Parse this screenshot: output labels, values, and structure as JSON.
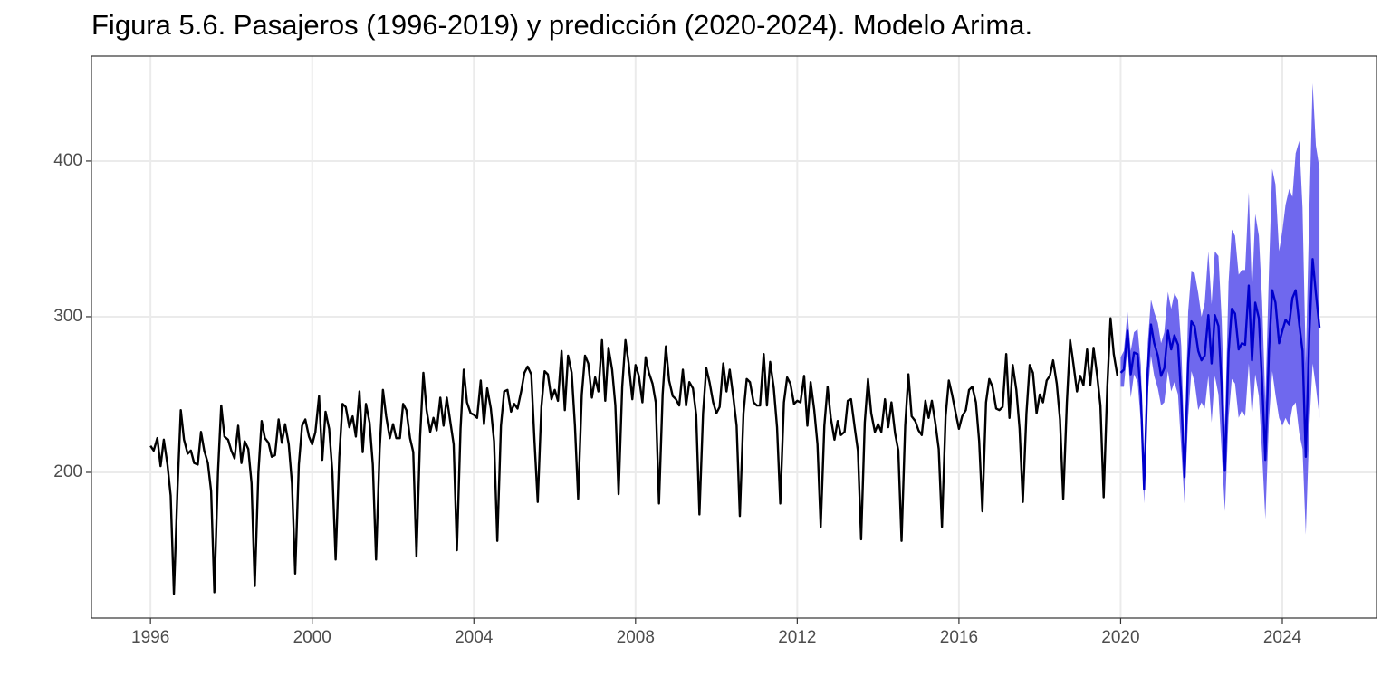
{
  "chart_data": {
    "type": "line",
    "title": "Figura 5.6. Pasajeros (1996-2019) y predicción (2020-2024). Modelo Arima.",
    "xlim": [
      1994.54,
      2026.33
    ],
    "xticks": [
      1996,
      2000,
      2004,
      2008,
      2012,
      2016,
      2020,
      2024
    ],
    "ylim": [
      106.4,
      467.4
    ],
    "yticks": [
      200,
      300,
      400
    ],
    "grid": true,
    "series": [
      {
        "color": "#000000",
        "x": [
          1996,
          1996.08,
          1996.17,
          1996.25,
          1996.33,
          1996.42,
          1996.5,
          1996.58,
          1996.67,
          1996.75,
          1996.83,
          1996.92,
          1997,
          1997.08,
          1997.17,
          1997.25,
          1997.33,
          1997.42,
          1997.5,
          1997.58,
          1997.67,
          1997.75,
          1997.83,
          1997.92,
          1998,
          1998.08,
          1998.17,
          1998.25,
          1998.33,
          1998.42,
          1998.5,
          1998.58,
          1998.67,
          1998.75,
          1998.83,
          1998.92,
          1999,
          1999.08,
          1999.17,
          1999.25,
          1999.33,
          1999.42,
          1999.5,
          1999.58,
          1999.67,
          1999.75,
          1999.83,
          1999.92,
          2000,
          2000.08,
          2000.17,
          2000.25,
          2000.33,
          2000.42,
          2000.5,
          2000.58,
          2000.67,
          2000.75,
          2000.83,
          2000.92,
          2001,
          2001.08,
          2001.17,
          2001.25,
          2001.33,
          2001.42,
          2001.5,
          2001.58,
          2001.67,
          2001.75,
          2001.83,
          2001.92,
          2002,
          2002.08,
          2002.17,
          2002.25,
          2002.33,
          2002.42,
          2002.5,
          2002.58,
          2002.67,
          2002.75,
          2002.83,
          2002.92,
          2003,
          2003.08,
          2003.17,
          2003.25,
          2003.33,
          2003.42,
          2003.5,
          2003.58,
          2003.67,
          2003.75,
          2003.83,
          2003.92,
          2004,
          2004.08,
          2004.17,
          2004.25,
          2004.33,
          2004.42,
          2004.5,
          2004.58,
          2004.67,
          2004.75,
          2004.83,
          2004.92,
          2005,
          2005.08,
          2005.17,
          2005.25,
          2005.33,
          2005.42,
          2005.5,
          2005.58,
          2005.67,
          2005.75,
          2005.83,
          2005.92,
          2006,
          2006.08,
          2006.17,
          2006.25,
          2006.33,
          2006.42,
          2006.5,
          2006.58,
          2006.67,
          2006.75,
          2006.83,
          2006.92,
          2007,
          2007.08,
          2007.17,
          2007.25,
          2007.33,
          2007.42,
          2007.5,
          2007.58,
          2007.67,
          2007.75,
          2007.83,
          2007.92,
          2008,
          2008.08,
          2008.17,
          2008.25,
          2008.33,
          2008.42,
          2008.5,
          2008.58,
          2008.67,
          2008.75,
          2008.83,
          2008.92,
          2009,
          2009.08,
          2009.17,
          2009.25,
          2009.33,
          2009.42,
          2009.5,
          2009.58,
          2009.67,
          2009.75,
          2009.83,
          2009.92,
          2010,
          2010.08,
          2010.17,
          2010.25,
          2010.33,
          2010.42,
          2010.5,
          2010.58,
          2010.67,
          2010.75,
          2010.83,
          2010.92,
          2011,
          2011.08,
          2011.17,
          2011.25,
          2011.33,
          2011.42,
          2011.5,
          2011.58,
          2011.67,
          2011.75,
          2011.83,
          2011.92,
          2012,
          2012.08,
          2012.17,
          2012.25,
          2012.33,
          2012.42,
          2012.5,
          2012.58,
          2012.67,
          2012.75,
          2012.83,
          2012.92,
          2013,
          2013.08,
          2013.17,
          2013.25,
          2013.33,
          2013.42,
          2013.5,
          2013.58,
          2013.67,
          2013.75,
          2013.83,
          2013.92,
          2014,
          2014.08,
          2014.17,
          2014.25,
          2014.33,
          2014.42,
          2014.5,
          2014.58,
          2014.67,
          2014.75,
          2014.83,
          2014.92,
          2015,
          2015.08,
          2015.17,
          2015.25,
          2015.33,
          2015.42,
          2015.5,
          2015.58,
          2015.67,
          2015.75,
          2015.83,
          2015.92,
          2016,
          2016.08,
          2016.17,
          2016.25,
          2016.33,
          2016.42,
          2016.5,
          2016.58,
          2016.67,
          2016.75,
          2016.83,
          2016.92,
          2017,
          2017.08,
          2017.17,
          2017.25,
          2017.33,
          2017.42,
          2017.5,
          2017.58,
          2017.67,
          2017.75,
          2017.83,
          2017.92,
          2018,
          2018.08,
          2018.17,
          2018.25,
          2018.33,
          2018.42,
          2018.5,
          2018.58,
          2018.67,
          2018.75,
          2018.83,
          2018.92,
          2019,
          2019.08,
          2019.17,
          2019.25,
          2019.33,
          2019.42,
          2019.5,
          2019.58,
          2019.67,
          2019.75,
          2019.83,
          2019.92
        ],
        "values": [
          217,
          214,
          222,
          204,
          221,
          205,
          185,
          122,
          190,
          240,
          221,
          212,
          214,
          206,
          205,
          226,
          214,
          206,
          188,
          123,
          200,
          243,
          223,
          221,
          214,
          209,
          230,
          206,
          220,
          215,
          193,
          127,
          200,
          233,
          222,
          219,
          210,
          211,
          234,
          219,
          231,
          218,
          193,
          135,
          205,
          230,
          234,
          223,
          218,
          226,
          249,
          208,
          239,
          228,
          200,
          144,
          210,
          244,
          242,
          229,
          236,
          223,
          252,
          213,
          244,
          232,
          205,
          144,
          215,
          253,
          236,
          222,
          231,
          222,
          222,
          244,
          240,
          222,
          213,
          146,
          223,
          264,
          240,
          226,
          235,
          227,
          248,
          230,
          248,
          232,
          218,
          150,
          228,
          266,
          245,
          238,
          237,
          235,
          259,
          231,
          254,
          241,
          220,
          156,
          230,
          252,
          253,
          239,
          244,
          241,
          252,
          264,
          268,
          263,
          220,
          181,
          242,
          265,
          263,
          247,
          253,
          246,
          278,
          240,
          275,
          264,
          230,
          183,
          250,
          275,
          270,
          248,
          261,
          252,
          285,
          246,
          280,
          266,
          243,
          186,
          255,
          285,
          270,
          247,
          269,
          262,
          245,
          274,
          264,
          257,
          245,
          180,
          250,
          281,
          259,
          249,
          247,
          243,
          266,
          243,
          258,
          254,
          237,
          173,
          238,
          267,
          258,
          245,
          238,
          242,
          270,
          252,
          266,
          248,
          230,
          172,
          238,
          260,
          258,
          245,
          243,
          243,
          276,
          243,
          271,
          254,
          229,
          180,
          245,
          261,
          257,
          244,
          246,
          245,
          262,
          230,
          258,
          240,
          218,
          165,
          230,
          255,
          235,
          221,
          233,
          224,
          226,
          246,
          247,
          229,
          214,
          157,
          232,
          260,
          238,
          226,
          231,
          226,
          247,
          229,
          245,
          225,
          214,
          156,
          230,
          263,
          236,
          233,
          227,
          224,
          246,
          235,
          246,
          231,
          215,
          165,
          236,
          259,
          250,
          238,
          228,
          236,
          240,
          253,
          255,
          245,
          220,
          175,
          245,
          260,
          255,
          241,
          240,
          242,
          276,
          235,
          269,
          253,
          228,
          181,
          238,
          269,
          264,
          238,
          250,
          245,
          259,
          262,
          272,
          257,
          234,
          183,
          245,
          285,
          270,
          252,
          262,
          256,
          279,
          256,
          280,
          262,
          243,
          184,
          255,
          299,
          276,
          262
        ]
      },
      {
        "color": "#0000cc",
        "band_color": "#6f68ee",
        "x": [
          2020,
          2020.08,
          2020.17,
          2020.25,
          2020.33,
          2020.42,
          2020.5,
          2020.58,
          2020.67,
          2020.75,
          2020.83,
          2020.92,
          2021,
          2021.08,
          2021.17,
          2021.25,
          2021.33,
          2021.42,
          2021.5,
          2021.58,
          2021.67,
          2021.75,
          2021.83,
          2021.92,
          2022,
          2022.08,
          2022.17,
          2022.25,
          2022.33,
          2022.42,
          2022.5,
          2022.58,
          2022.67,
          2022.75,
          2022.83,
          2022.92,
          2023,
          2023.08,
          2023.17,
          2023.25,
          2023.33,
          2023.42,
          2023.5,
          2023.58,
          2023.67,
          2023.75,
          2023.83,
          2023.92,
          2024,
          2024.08,
          2024.17,
          2024.25,
          2024.33,
          2024.42,
          2024.5,
          2024.58,
          2024.67,
          2024.75,
          2024.83,
          2024.92
        ],
        "values": [
          264,
          266,
          291,
          263,
          277,
          276,
          250,
          189,
          266,
          295,
          283,
          275,
          262,
          267,
          291,
          279,
          288,
          282,
          248,
          197,
          270,
          297,
          294,
          278,
          272,
          275,
          301,
          270,
          301,
          294,
          255,
          201,
          277,
          305,
          302,
          279,
          283,
          282,
          320,
          272,
          309,
          299,
          258,
          208,
          278,
          317,
          309,
          283,
          291,
          298,
          295,
          312,
          317,
          295,
          278,
          210,
          290,
          337,
          315,
          293
        ],
        "lower": [
          255,
          255,
          280,
          248,
          263,
          258,
          232,
          180,
          250,
          275,
          262,
          254,
          243,
          245,
          265,
          252,
          258,
          250,
          215,
          180,
          235,
          265,
          258,
          240,
          245,
          241,
          262,
          232,
          262,
          250,
          213,
          175,
          235,
          260,
          257,
          235,
          240,
          236,
          270,
          235,
          263,
          249,
          212,
          170,
          234,
          265,
          250,
          235,
          230,
          235,
          230,
          242,
          245,
          225,
          215,
          160,
          230,
          270,
          255,
          235
        ],
        "upper": [
          274,
          278,
          303,
          278,
          290,
          292,
          269,
          200,
          283,
          311,
          303,
          296,
          283,
          290,
          316,
          305,
          315,
          311,
          281,
          215,
          303,
          329,
          328,
          315,
          300,
          309,
          342,
          308,
          342,
          339,
          298,
          229,
          322,
          356,
          352,
          327,
          330,
          330,
          380,
          315,
          366,
          352,
          310,
          245,
          330,
          395,
          385,
          342,
          355,
          372,
          382,
          377,
          405,
          413,
          370,
          270,
          370,
          450,
          410,
          395
        ]
      }
    ]
  }
}
